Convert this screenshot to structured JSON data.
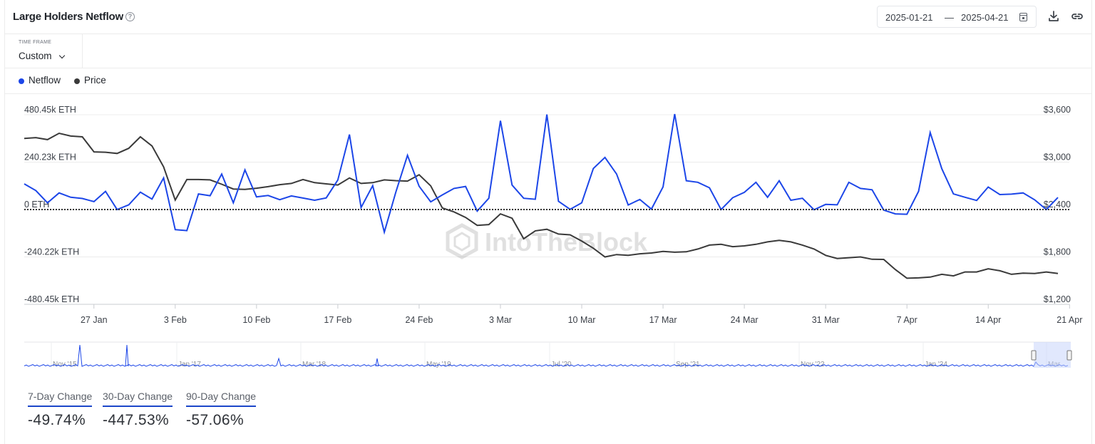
{
  "header": {
    "title": "Large Holders Netflow",
    "help_icon": "question-circle-icon",
    "date_from": "2025-01-21",
    "date_separator": "—",
    "date_to": "2025-04-21",
    "calendar_icon": "calendar-icon",
    "download_icon": "download-icon",
    "link_icon": "link-icon"
  },
  "timeframe": {
    "label": "TIME FRAME",
    "value": "Custom",
    "icon": "chevron-down-icon"
  },
  "legend": [
    {
      "name": "Netflow",
      "color": "#1c46e8"
    },
    {
      "name": "Price",
      "color": "#3a3a3a"
    }
  ],
  "watermark": "IntoTheBlock",
  "colors": {
    "netflow": "#1c46e8",
    "price": "#3a3a3a",
    "grid": "#ececec",
    "zero": "#333333",
    "navigator": "#1c46e8"
  },
  "chart_data": {
    "type": "line",
    "x_start": "2025-01-21",
    "x_end": "2025-04-21",
    "x_ticks": [
      "27 Jan",
      "3 Feb",
      "10 Feb",
      "17 Feb",
      "24 Feb",
      "3 Mar",
      "10 Mar",
      "17 Mar",
      "24 Mar",
      "31 Mar",
      "7 Apr",
      "14 Apr",
      "21 Apr"
    ],
    "y_left": {
      "ticks": [
        "480.45k ETH",
        "240.23k ETH",
        "0 ETH",
        "-240.22k ETH",
        "-480.45k ETH"
      ],
      "range": [
        -480.45,
        480.45
      ],
      "unit": "k ETH"
    },
    "y_right": {
      "ticks": [
        "$3,600",
        "$3,000",
        "$2,400",
        "$1,800",
        "$1,200"
      ],
      "range": [
        1200,
        3600
      ]
    },
    "zero_line": "dotted",
    "grid": true,
    "series": [
      {
        "name": "Netflow",
        "axis": "left",
        "values": [
          130,
          96,
          34,
          84,
          62,
          56,
          40,
          92,
          0,
          24,
          88,
          53,
          160,
          -102,
          -107,
          79,
          70,
          180,
          34,
          201,
          64,
          71,
          50,
          69,
          58,
          47,
          59,
          150,
          380,
          10,
          121,
          -115,
          89,
          275,
          118,
          39,
          74,
          107,
          117,
          -8,
          57,
          450,
          124,
          57,
          52,
          482,
          42,
          1,
          34,
          208,
          264,
          180,
          23,
          51,
          2,
          115,
          484,
          146,
          138,
          110,
          0,
          60,
          87,
          138,
          62,
          146,
          47,
          57,
          -1,
          26,
          24,
          138,
          107,
          100,
          -3,
          -22,
          -24,
          92,
          390,
          207,
          79,
          62,
          46,
          114,
          76,
          78,
          84,
          49,
          0,
          61
        ]
      },
      {
        "name": "Price",
        "axis": "right",
        "values": [
          3300,
          3310,
          3285,
          3365,
          3330,
          3320,
          3130,
          3125,
          3110,
          3175,
          3320,
          3205,
          2940,
          2520,
          2780,
          2780,
          2775,
          2720,
          2660,
          2655,
          2670,
          2690,
          2715,
          2730,
          2780,
          2740,
          2725,
          2710,
          2800,
          2730,
          2740,
          2775,
          2765,
          2760,
          2840,
          2700,
          2420,
          2370,
          2300,
          2200,
          2210,
          2345,
          2290,
          2030,
          2130,
          2150,
          2090,
          2080,
          2000,
          1910,
          1800,
          1830,
          1820,
          1840,
          1850,
          1870,
          1860,
          1865,
          1900,
          1950,
          1960,
          1930,
          1940,
          1960,
          1990,
          2010,
          1990,
          1950,
          1900,
          1820,
          1780,
          1790,
          1800,
          1770,
          1768,
          1640,
          1530,
          1535,
          1545,
          1580,
          1560,
          1610,
          1610,
          1650,
          1625,
          1580,
          1595,
          1590,
          1610,
          1590
        ]
      }
    ],
    "navigator": {
      "labels": [
        "Nov '15",
        "Jan '17",
        "Mar '18",
        "May '19",
        "Jul '20",
        "Sep '21",
        "Nov '22",
        "Jan '24",
        "Mar"
      ]
    }
  },
  "changes": [
    {
      "label": "7-Day Change",
      "value": "-49.74%"
    },
    {
      "label": "30-Day Change",
      "value": "-447.53%"
    },
    {
      "label": "90-Day Change",
      "value": "-57.06%"
    }
  ]
}
